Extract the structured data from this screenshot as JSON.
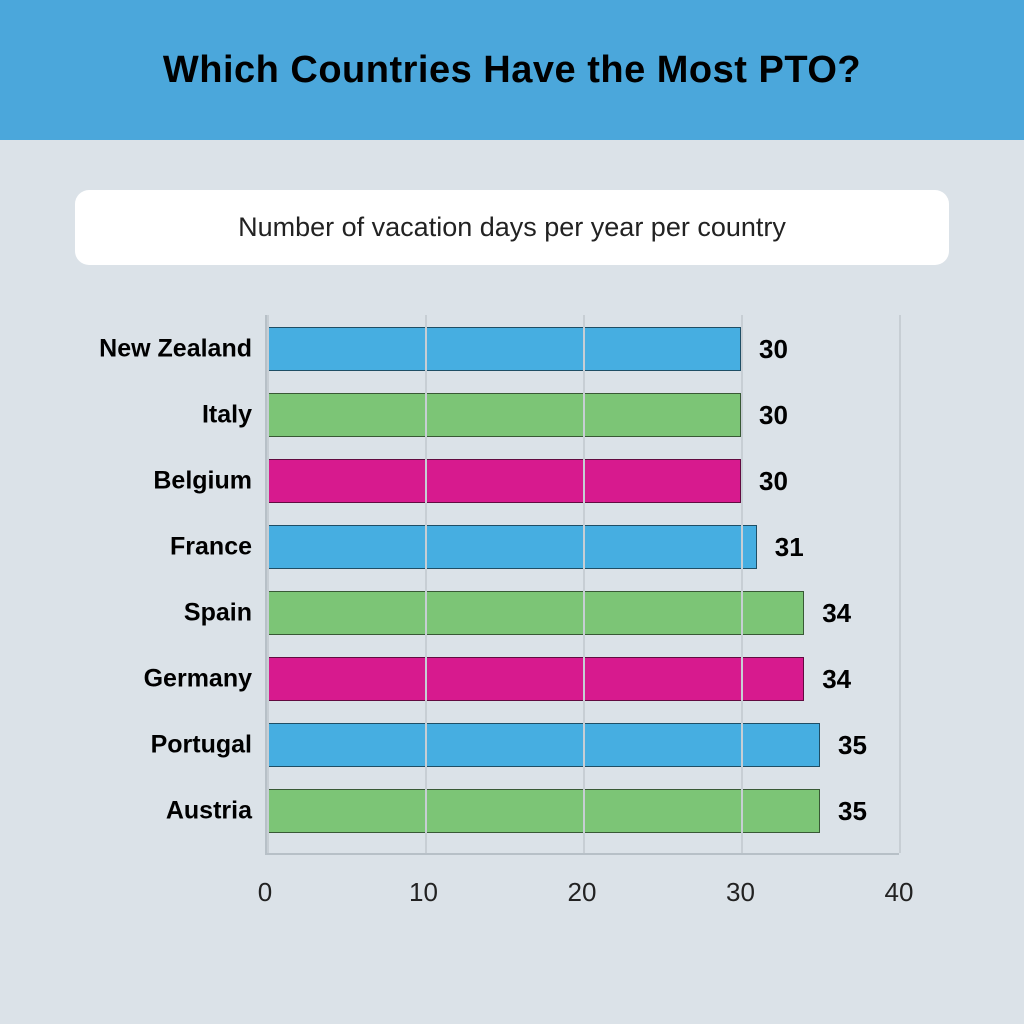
{
  "header": {
    "title": "Which Countries Have the Most PTO?"
  },
  "subtitle": "Number of vacation days per year per country",
  "chart": {
    "type": "bar-horizontal",
    "x_max": 40,
    "x_ticks": [
      0,
      10,
      20,
      30,
      40
    ],
    "gridline_color": "#c7ced4",
    "axis_color": "#b7c0c7",
    "background_color": "#dbe2e8",
    "bar_border_color": "rgba(0,0,0,0.55)",
    "label_fontsize": 25,
    "value_fontsize": 26,
    "tick_fontsize": 26,
    "rows": [
      {
        "label": "New Zealand",
        "value": 30,
        "color": "#46aee1"
      },
      {
        "label": "Italy",
        "value": 30,
        "color": "#7cc576"
      },
      {
        "label": "Belgium",
        "value": 30,
        "color": "#d71a8e"
      },
      {
        "label": "France",
        "value": 31,
        "color": "#46aee1"
      },
      {
        "label": "Spain",
        "value": 34,
        "color": "#7cc576"
      },
      {
        "label": "Germany",
        "value": 34,
        "color": "#d71a8e"
      },
      {
        "label": "Portugal",
        "value": 35,
        "color": "#46aee1"
      },
      {
        "label": "Austria",
        "value": 35,
        "color": "#7cc576"
      }
    ]
  }
}
